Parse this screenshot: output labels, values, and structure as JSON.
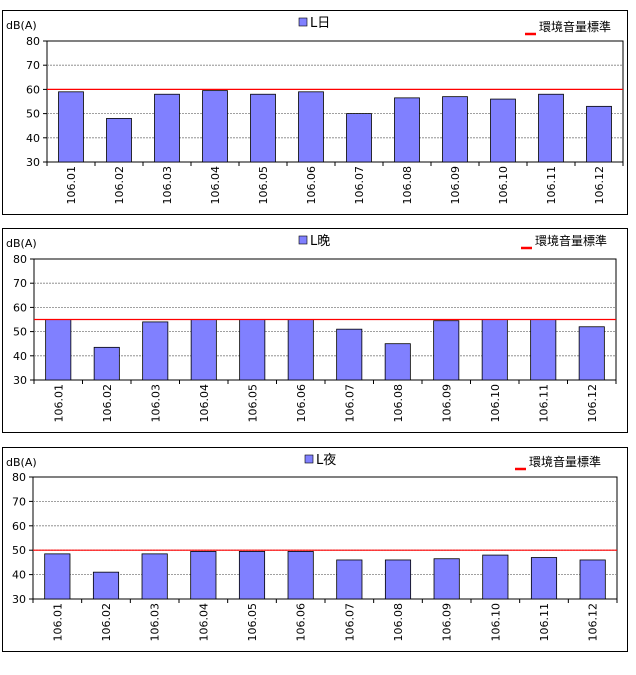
{
  "colors": {
    "bar": "#8080ff",
    "standard_line": "#ff0000",
    "grid": "#808080"
  },
  "chart_data": [
    {
      "type": "bar",
      "ylabel": "dB(A)",
      "series_name": "L日",
      "standard_name": "環境音量標準",
      "categories": [
        "106.01",
        "106.02",
        "106.03",
        "106.04",
        "106.05",
        "106.06",
        "106.07",
        "106.08",
        "106.09",
        "106.10",
        "106.11",
        "106.12"
      ],
      "values": [
        59,
        48,
        58,
        59.5,
        58,
        59,
        50,
        56.5,
        57,
        56,
        58,
        53
      ],
      "standard": 60,
      "ylim": [
        30,
        80
      ],
      "yticks": [
        "30",
        "40",
        "50",
        "60",
        "70",
        "80"
      ],
      "grid": true
    },
    {
      "type": "bar",
      "ylabel": "dB(A)",
      "series_name": "L晚",
      "standard_name": "環境音量標準",
      "categories": [
        "106.01",
        "106.02",
        "106.03",
        "106.04",
        "106.05",
        "106.06",
        "106.07",
        "106.08",
        "106.09",
        "106.10",
        "106.11",
        "106.12"
      ],
      "values": [
        55,
        43.5,
        54,
        55,
        55,
        55,
        51,
        45,
        54.5,
        55,
        55,
        52
      ],
      "standard": 55,
      "ylim": [
        30,
        80
      ],
      "yticks": [
        "30",
        "40",
        "50",
        "60",
        "70",
        "80"
      ],
      "grid": true
    },
    {
      "type": "bar",
      "ylabel": "dB(A)",
      "series_name": "L夜",
      "standard_name": "環境音量標準",
      "categories": [
        "106.01",
        "106.02",
        "106.03",
        "106.04",
        "106.05",
        "106.06",
        "106.07",
        "106.08",
        "106.09",
        "106.10",
        "106.11",
        "106.12"
      ],
      "values": [
        48.5,
        41,
        48.5,
        49.5,
        49.5,
        49.5,
        46,
        46,
        46.5,
        48,
        47,
        46
      ],
      "standard": 50,
      "ylim": [
        30,
        80
      ],
      "yticks": [
        "30",
        "40",
        "50",
        "60",
        "70",
        "80"
      ],
      "grid": true
    }
  ]
}
